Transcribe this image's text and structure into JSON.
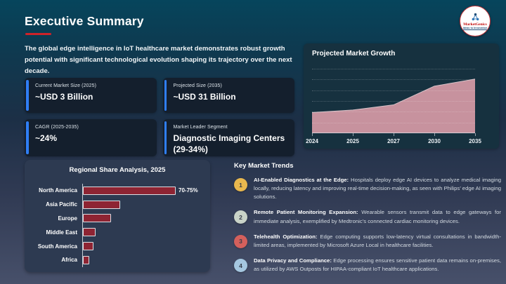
{
  "slide": {
    "title": "Executive Summary",
    "intro": "The global edge intelligence in IoT healthcare market demonstrates robust growth potential with significant technological evolution shaping its trajectory over the next decade.",
    "logo": {
      "brand": "MarketGenics",
      "tagline": "Ideas to Innovation",
      "icon": "molecule-icon"
    }
  },
  "stats": [
    {
      "label": "Current Market Size (2025)",
      "value": "~USD 3 Billion"
    },
    {
      "label": "Projected Size (2035)",
      "value": "~USD 31 Billion"
    },
    {
      "label": "CAGR (2025-2035)",
      "value": "~24%"
    },
    {
      "label": "Market Leader Segment",
      "value": "Diagnostic Imaging Centers (29-34%)"
    }
  ],
  "chart_data": [
    {
      "type": "area",
      "title": "Projected Market Growth",
      "x": [
        "2024",
        "2025",
        "2027",
        "2030",
        "2035"
      ],
      "values": [
        32,
        36,
        44,
        73,
        84
      ],
      "xlabel": "",
      "ylabel": "",
      "ylim": [
        0,
        100
      ],
      "grid": "horizontal-dotted",
      "gridline_count": 6,
      "legend": "none",
      "fill_color": "#c7929e",
      "edge_color": "#d9c3c9"
    },
    {
      "type": "bar",
      "title": "Regional Share Analysis, 2025",
      "orientation": "horizontal",
      "categories": [
        "North America",
        "Asia Pacific",
        "Europe",
        "Middle East",
        "South America",
        "Africa"
      ],
      "values": [
        72.5,
        29,
        22,
        10,
        8,
        5
      ],
      "data_labels": [
        "70-75%",
        "",
        "",
        "",
        "",
        ""
      ],
      "xlabel": "",
      "ylabel": "",
      "xlim": [
        0,
        95
      ],
      "grid": "off",
      "legend": "none",
      "bar_color": "#8e2433"
    }
  ],
  "trends": {
    "heading": "Key Market Trends",
    "items": [
      {
        "number": "1",
        "badge_color": "#e9b84e",
        "title": "AI-Enabled Diagnostics at the Edge:",
        "body": "Hospitals deploy edge AI devices to analyze medical imaging locally, reducing latency and improving real-time decision-making, as seen with Philips’ edge AI imaging solutions."
      },
      {
        "number": "2",
        "badge_color": "#c9d3c8",
        "title": "Remote Patient Monitoring Expansion:",
        "body": "Wearable sensors transmit data to edge gateways for immediate analysis, exemplified by Medtronic’s connected cardiac monitoring devices."
      },
      {
        "number": "3",
        "badge_color": "#d4605c",
        "title": "Telehealth Optimization:",
        "body": "Edge computing supports low-latency virtual consultations in bandwidth-limited areas, implemented by Microsoft Azure Local in healthcare facilities."
      },
      {
        "number": "4",
        "badge_color": "#a5c7e0",
        "title": "Data Privacy and Compliance:",
        "body": "Edge processing ensures sensitive patient data remains on-premises, as utilized by AWS Outposts for HIPAA-compliant IoT healthcare applications."
      }
    ]
  },
  "colors": {
    "accent_blue": "#2f7ef5",
    "title_underline_red": "#cf2329",
    "card_bg": "#141f2d",
    "growth_panel_bg": "#16313f",
    "regional_panel_bg": "#2d3a51",
    "area_fill": "#c7929e",
    "bar_fill": "#8e2433"
  }
}
